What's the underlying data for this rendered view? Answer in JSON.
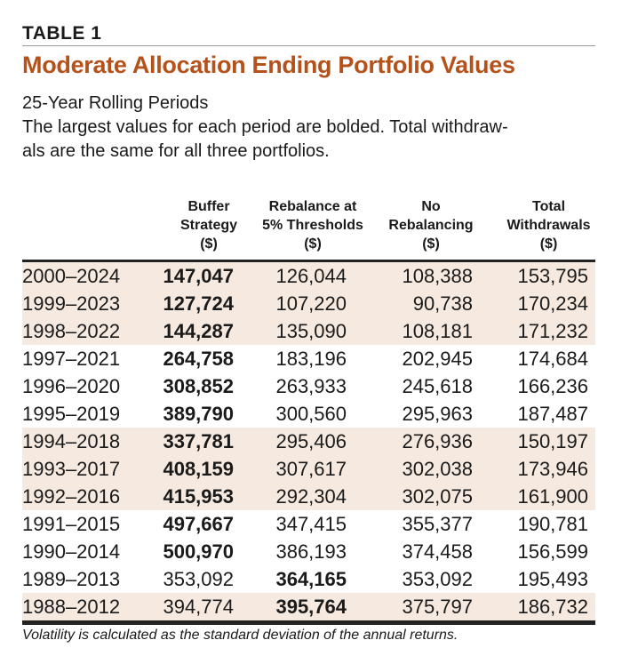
{
  "table_label": "TABLE 1",
  "title": "Moderate Allocation Ending Portfolio Values",
  "subtitle": "25-Year Rolling Periods",
  "description": "The largest values for each period are bolded. Total withdraw-als are the same for all three portfolios.",
  "description_lines": [
    "The largest values for each period are bolded. Total withdraw-",
    "als are the same for all three portfolios."
  ],
  "columns": [
    {
      "lines": [
        "Buffer",
        "Strategy",
        "($)"
      ]
    },
    {
      "lines": [
        "Rebalance at",
        "5% Thresholds",
        "($)"
      ]
    },
    {
      "lines": [
        "No",
        "Rebalancing",
        "($)"
      ]
    },
    {
      "lines": [
        "Total",
        "Withdrawals",
        "($)"
      ]
    }
  ],
  "rows": [
    {
      "period": "2000–2024",
      "values": [
        "147,047",
        "126,044",
        "108,388",
        "153,795"
      ],
      "bold": 1,
      "shaded": true
    },
    {
      "period": "1999–2023",
      "values": [
        "127,724",
        "107,220",
        "90,738",
        "170,234"
      ],
      "bold": 1,
      "shaded": true
    },
    {
      "period": "1998–2022",
      "values": [
        "144,287",
        "135,090",
        "108,181",
        "171,232"
      ],
      "bold": 1,
      "shaded": true
    },
    {
      "period": "1997–2021",
      "values": [
        "264,758",
        "183,196",
        "202,945",
        "174,684"
      ],
      "bold": 1,
      "shaded": false
    },
    {
      "period": "1996–2020",
      "values": [
        "308,852",
        "263,933",
        "245,618",
        "166,236"
      ],
      "bold": 1,
      "shaded": false
    },
    {
      "period": "1995–2019",
      "values": [
        "389,790",
        "300,560",
        "295,963",
        "187,487"
      ],
      "bold": 1,
      "shaded": false
    },
    {
      "period": "1994–2018",
      "values": [
        "337,781",
        "295,406",
        "276,936",
        "150,197"
      ],
      "bold": 1,
      "shaded": true
    },
    {
      "period": "1993–2017",
      "values": [
        "408,159",
        "307,617",
        "302,038",
        "173,946"
      ],
      "bold": 1,
      "shaded": true
    },
    {
      "period": "1992–2016",
      "values": [
        "415,953",
        "292,304",
        "302,075",
        "161,900"
      ],
      "bold": 1,
      "shaded": true
    },
    {
      "period": "1991–2015",
      "values": [
        "497,667",
        "347,415",
        "355,377",
        "190,781"
      ],
      "bold": 1,
      "shaded": false
    },
    {
      "period": "1990–2014",
      "values": [
        "500,970",
        "386,193",
        "374,458",
        "156,599"
      ],
      "bold": 1,
      "shaded": false
    },
    {
      "period": "1989–2013",
      "values": [
        "353,092",
        "364,165",
        "353,092",
        "195,493"
      ],
      "bold": 2,
      "shaded": false
    },
    {
      "period": "1988–2012",
      "values": [
        "394,774",
        "395,764",
        "375,797",
        "186,732"
      ],
      "bold": 2,
      "shaded": true
    }
  ],
  "footnote": "Volatility is calculated as the standard deviation of the annual returns.",
  "colors": {
    "title": "#b5521b",
    "shade": "#f6e9df"
  }
}
